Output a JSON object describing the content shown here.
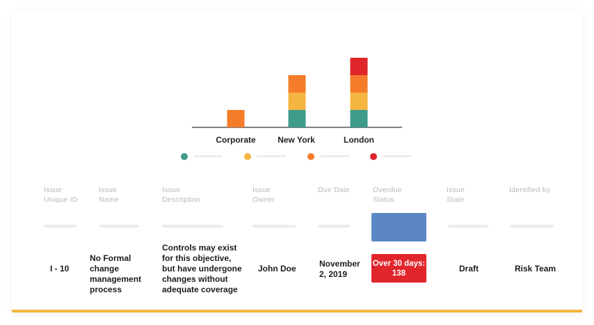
{
  "chart_data": {
    "type": "bar",
    "stacked": true,
    "categories": [
      "Corporate",
      "New York",
      "London"
    ],
    "colors": [
      "#3f9b8c",
      "#f5b541",
      "#f47c2a",
      "#e0252b"
    ],
    "series": [
      {
        "values": [
          0,
          1,
          1
        ]
      },
      {
        "values": [
          0,
          1,
          1
        ]
      },
      {
        "values": [
          1,
          1,
          1
        ]
      },
      {
        "values": [
          0,
          0,
          1
        ]
      }
    ],
    "ylim": [
      0,
      4
    ],
    "grid": false,
    "legend": "bottom"
  },
  "table": {
    "headers": [
      "Issue\nUnique ID",
      "Issue\nName",
      "Issue\nDescription",
      "Issue\nOwner",
      "Due Date",
      "Overdue\nStatus",
      "Issue\nState",
      "Identified by"
    ],
    "row": {
      "id": "I - 10",
      "name": "No Formal change management process",
      "description": "Controls may exist for this objective, but have undergone changes without adequate coverage",
      "owner": "John Doe",
      "due_date": "November 2, 2019",
      "overdue": "Over 30 days: 138",
      "state": "Draft",
      "identified_by": "Risk Team"
    },
    "status_colors": {
      "placeholder_blue": "#5b87c5",
      "overdue_red": "#e0252b"
    }
  }
}
